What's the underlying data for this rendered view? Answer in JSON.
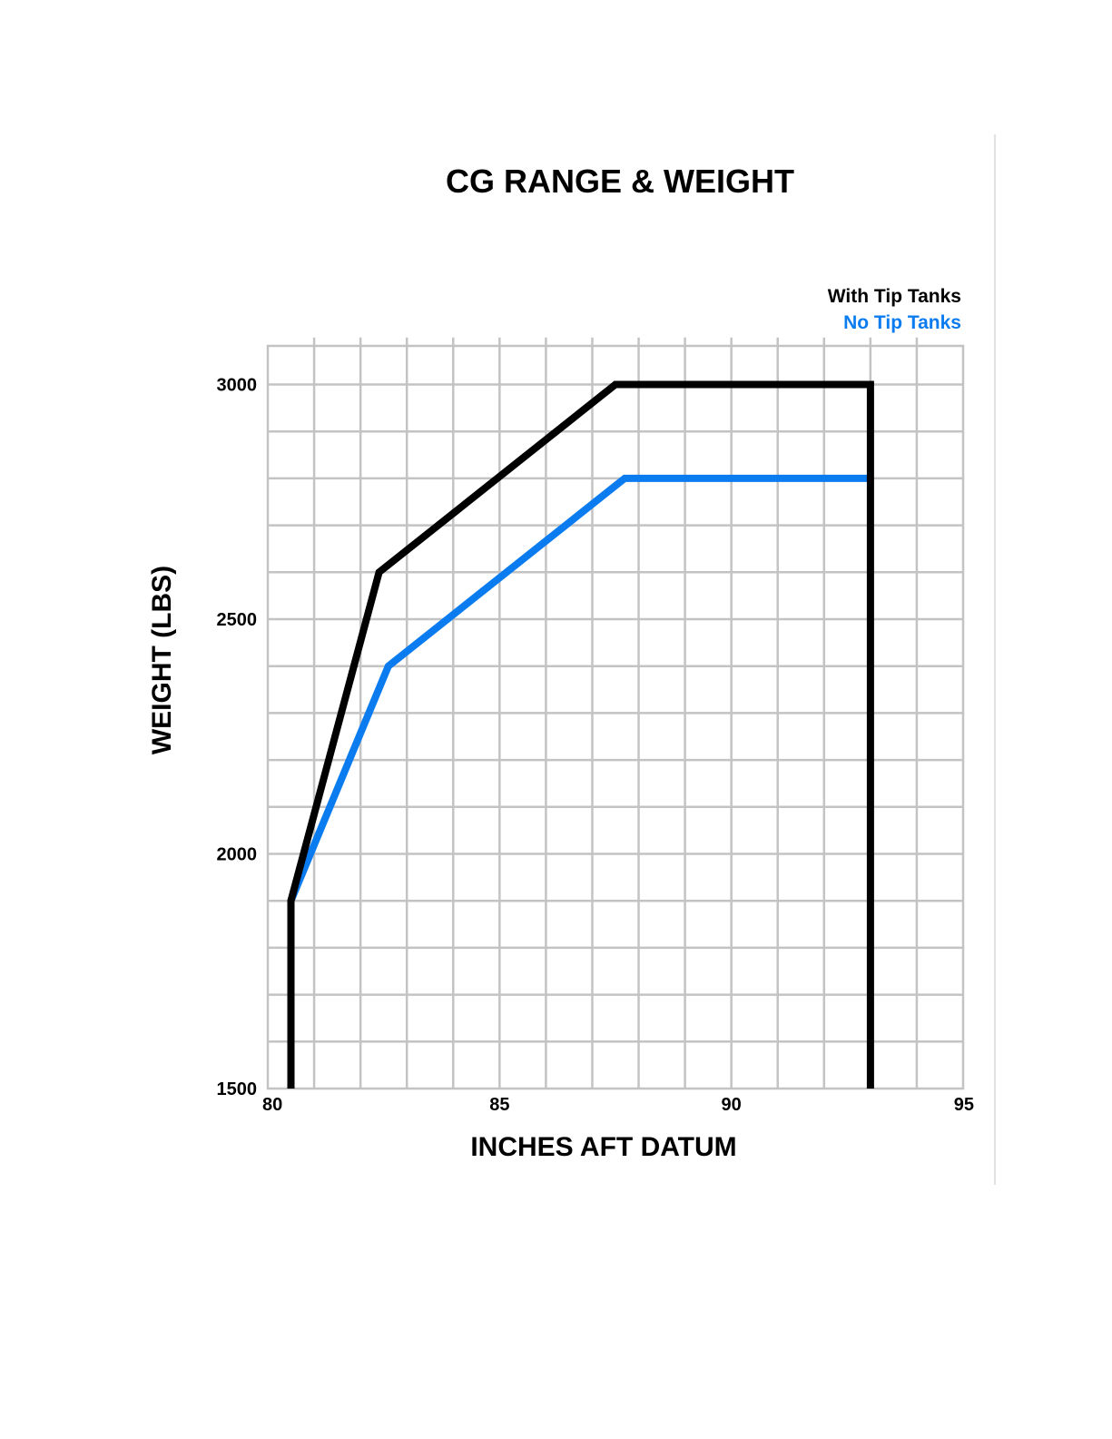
{
  "chart_data": {
    "type": "line",
    "title": "CG RANGE & WEIGHT",
    "xlabel": "INCHES AFT DATUM",
    "ylabel": "WEIGHT (LBS)",
    "xlim": [
      80,
      95
    ],
    "ylim": [
      1500,
      3100
    ],
    "xticks": [
      80,
      85,
      90,
      95
    ],
    "yticks": [
      1500,
      2000,
      2500,
      3000
    ],
    "x_grid_step": 1,
    "y_grid_step": 100,
    "grid": true,
    "legend_position": "top-right",
    "series": [
      {
        "name": "With Tip Tanks",
        "color": "#000000",
        "points": [
          [
            80.5,
            1500
          ],
          [
            80.5,
            1900
          ],
          [
            82.4,
            2600
          ],
          [
            87.5,
            3000
          ],
          [
            93.0,
            3000
          ],
          [
            93.0,
            1500
          ]
        ]
      },
      {
        "name": "No Tip Tanks",
        "color": "#0a7cf0",
        "points": [
          [
            80.5,
            1900
          ],
          [
            82.6,
            2400
          ],
          [
            87.7,
            2800
          ],
          [
            93.0,
            2800
          ]
        ]
      }
    ]
  }
}
